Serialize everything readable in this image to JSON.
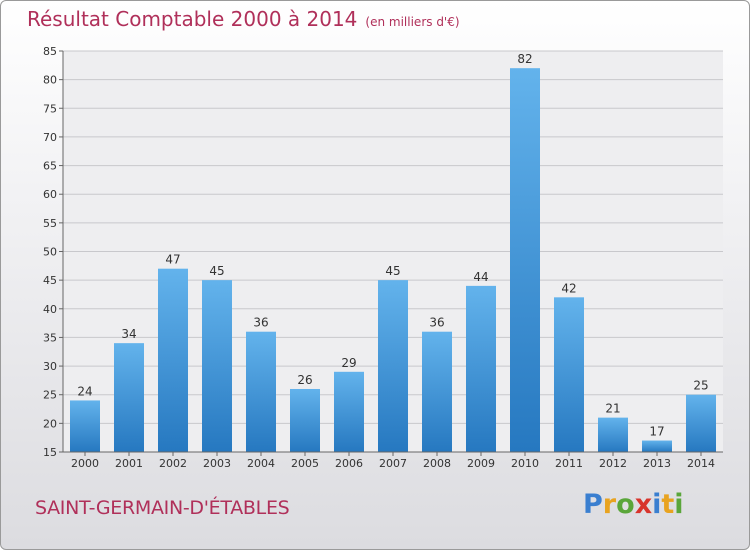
{
  "header": {
    "title": "Résultat Comptable 2000 à 2014",
    "subtitle": "(en milliers d'€)"
  },
  "footer": {
    "city": "SAINT-GERMAIN-D'ÉTABLES",
    "brand": "Proxiti",
    "brand_letters": [
      {
        "ch": "P",
        "color": "#3a7fd0"
      },
      {
        "ch": "r",
        "color": "#e8a320"
      },
      {
        "ch": "o",
        "color": "#5aa63a"
      },
      {
        "ch": "x",
        "color": "#d8342c"
      },
      {
        "ch": "i",
        "color": "#3a7fd0"
      },
      {
        "ch": "t",
        "color": "#e8a320"
      },
      {
        "ch": "i",
        "color": "#5aa63a"
      }
    ]
  },
  "colors": {
    "bar_light": "#63b3ec",
    "bar_dark": "#2678c0",
    "title": "#b0305a"
  },
  "chart_data": {
    "type": "bar",
    "categories": [
      "2000",
      "2001",
      "2002",
      "2003",
      "2004",
      "2005",
      "2006",
      "2007",
      "2008",
      "2009",
      "2010",
      "2011",
      "2012",
      "2013",
      "2014"
    ],
    "values": [
      24,
      34,
      47,
      45,
      36,
      26,
      29,
      45,
      36,
      44,
      82,
      42,
      21,
      17,
      25
    ],
    "ylim": [
      15,
      85
    ],
    "yticks": [
      15,
      20,
      25,
      30,
      35,
      40,
      45,
      50,
      55,
      60,
      65,
      70,
      75,
      80,
      85
    ],
    "grid": true
  }
}
